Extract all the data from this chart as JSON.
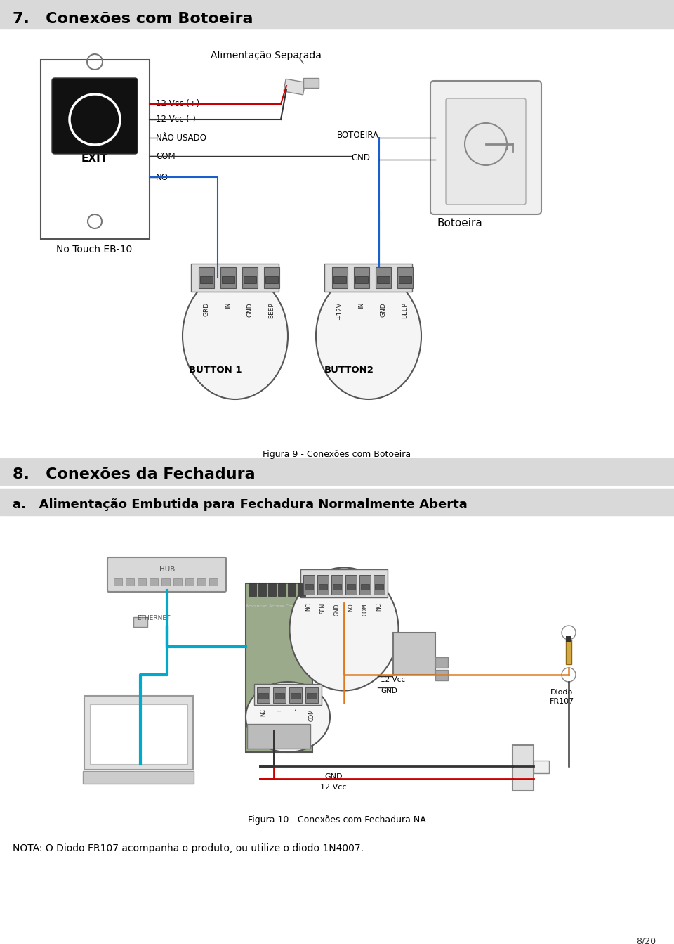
{
  "page_bg": "#ffffff",
  "header_bg": "#d9d9d9",
  "section7_title": "7.   Conexões com Botoeira",
  "section8_title": "8.   Conexões da Fechadura",
  "subsection_a_title": "a.   Alimentação Embutida para Fechadura Normalmente Aberta",
  "fig9_caption": "Figura 9 - Conexões com Botoeira",
  "fig10_caption": "Figura 10 - Conexões com Fechadura NA",
  "nota_text": "NOTA: O Diodo FR107 acompanha o produto, ou utilize o diodo 1N4007.",
  "page_number": "8/20",
  "alimentacao_separada": "Alimentação Separada",
  "no_touch_label": "No Touch EB-10",
  "botoeira_label": "Botoeira",
  "button1_label": "BUTTON 1",
  "button2_label": "BUTTON2",
  "labels_wire": [
    "12 Vcc (+)",
    "12 Vcc (-)",
    "NÃO USADO",
    "COM",
    "NO"
  ],
  "labels_right": [
    "BOTOEIRA",
    "GND"
  ],
  "btn1_pins": [
    "GRD",
    "IN",
    "GND",
    "BEEP"
  ],
  "btn2_pins": [
    "+12V",
    "IN",
    "GND",
    "BEEP"
  ],
  "lock1_pins": [
    "NC",
    "SEN",
    "GND",
    "NO",
    "COM",
    "NC"
  ],
  "lock_lower_pins": [
    "NC",
    "+",
    "-",
    "COM"
  ],
  "wire_red": "#cc0000",
  "wire_blue": "#1a5fcc",
  "wire_black": "#333333",
  "wire_orange": "#e07820",
  "wire_cyan": "#00aacc",
  "wire_dark": "#222222"
}
